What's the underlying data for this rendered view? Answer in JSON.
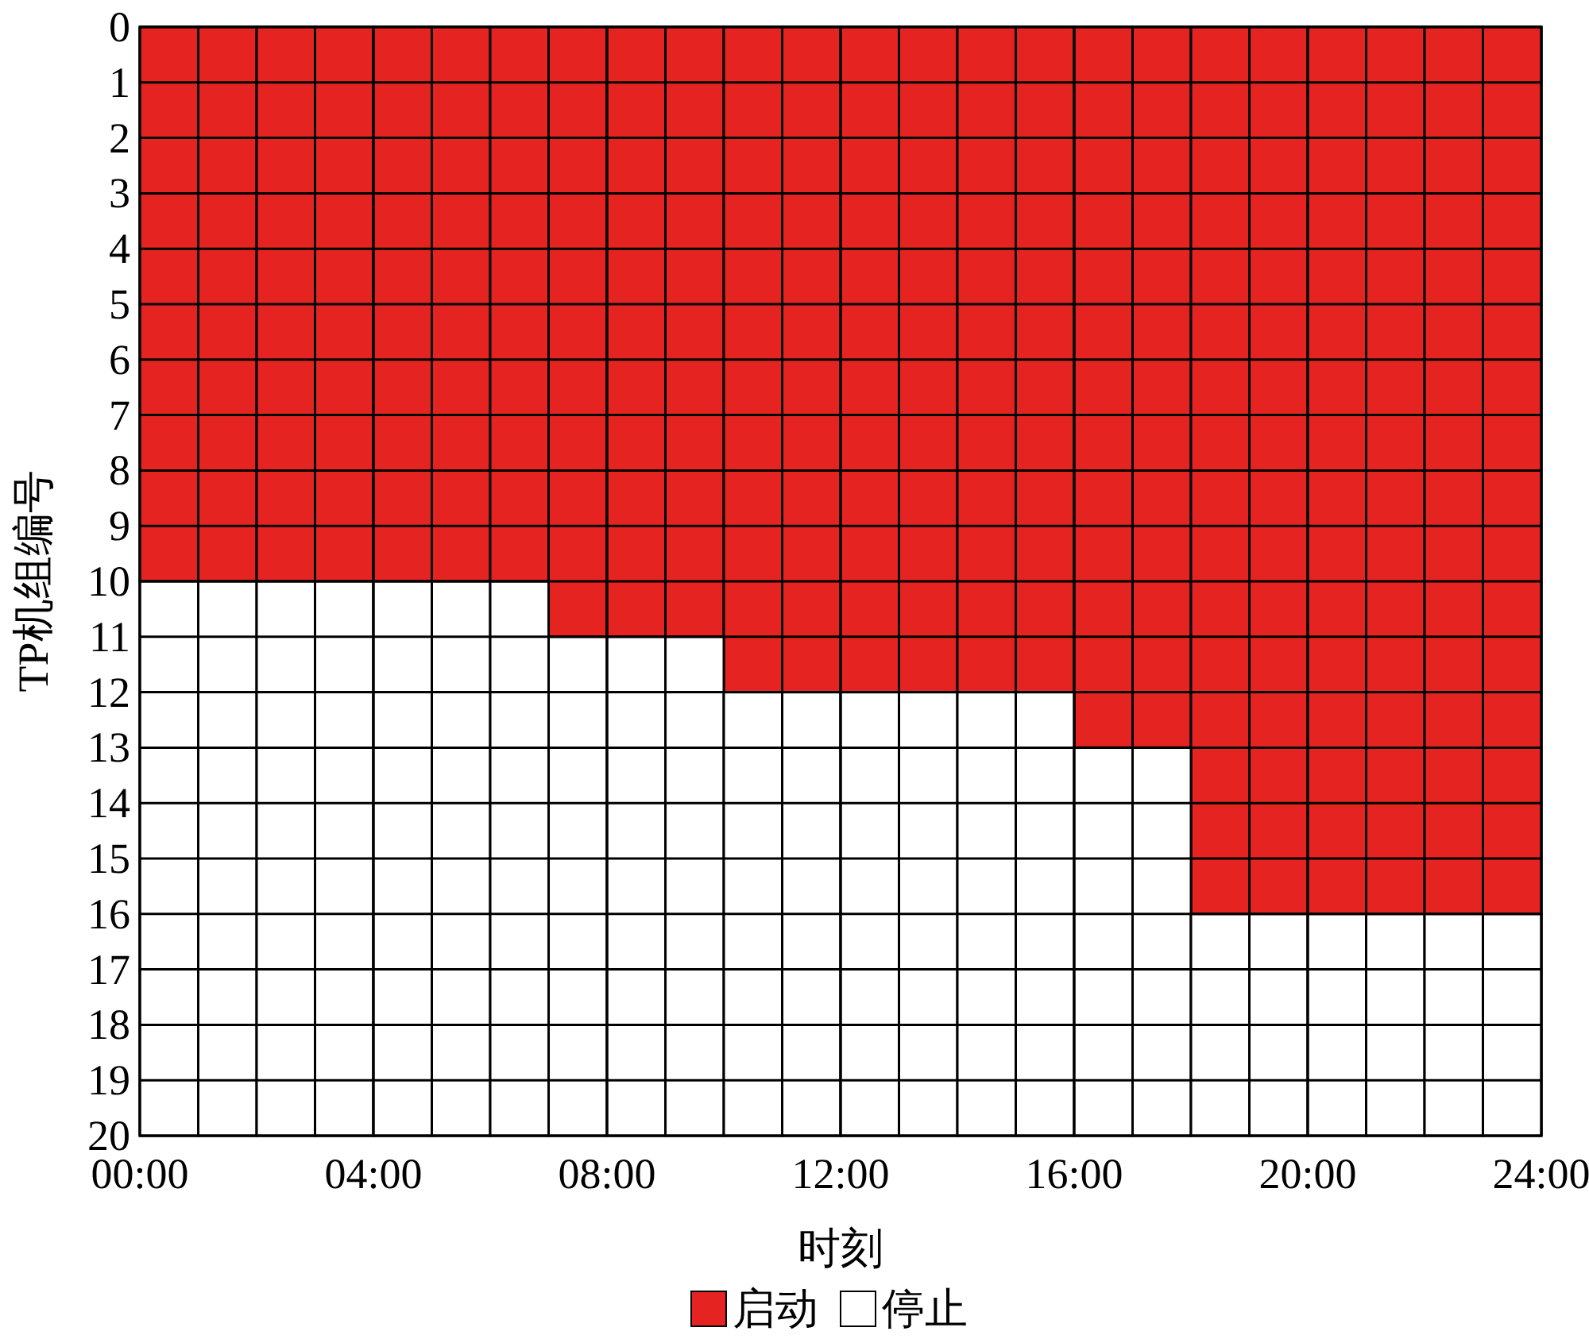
{
  "chart_data": {
    "type": "bar",
    "stacked": true,
    "xlabel": "时刻",
    "ylabel": "TP机组编号",
    "x": [
      0.5,
      1.5,
      2.5,
      3.5,
      4.5,
      5.5,
      6.5,
      7.5,
      8.5,
      9.5,
      10.5,
      11.5,
      12.5,
      13.5,
      14.5,
      15.5,
      16.5,
      17.5,
      18.5,
      19.5,
      20.5,
      21.5,
      22.5,
      23.5
    ],
    "xlim": [
      0,
      24
    ],
    "xticks": [
      {
        "value": 0,
        "label": "00:00"
      },
      {
        "value": 4,
        "label": "04:00"
      },
      {
        "value": 8,
        "label": "08:00"
      },
      {
        "value": 12,
        "label": "12:00"
      },
      {
        "value": 16,
        "label": "16:00"
      },
      {
        "value": 20,
        "label": "20:00"
      },
      {
        "value": 24,
        "label": "24:00"
      }
    ],
    "ylim": [
      20,
      0
    ],
    "yticks": [
      0,
      1,
      2,
      3,
      4,
      5,
      6,
      7,
      8,
      9,
      10,
      11,
      12,
      13,
      14,
      15,
      16,
      17,
      18,
      19,
      20
    ],
    "grid": true,
    "legend": "bottom",
    "series": [
      {
        "name": "启动",
        "color": "#e52421",
        "values": [
          10,
          10,
          10,
          10,
          10,
          10,
          10,
          11,
          11,
          11,
          12,
          12,
          12,
          12,
          12,
          12,
          13,
          13,
          16,
          16,
          16,
          16,
          16,
          16
        ]
      },
      {
        "name": "停止",
        "color": "#ffffff",
        "values": [
          10,
          10,
          10,
          10,
          10,
          10,
          10,
          9,
          9,
          9,
          8,
          8,
          8,
          8,
          8,
          8,
          7,
          7,
          4,
          4,
          4,
          4,
          4,
          4
        ]
      }
    ]
  }
}
